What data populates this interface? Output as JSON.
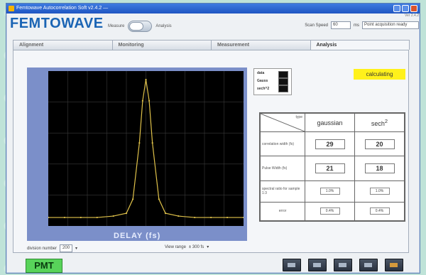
{
  "window": {
    "title": "Femtowave Autocorrelation Soft v2.4.2 —"
  },
  "brand": "FEMTOWAVE",
  "toggle": {
    "left_label": "Measure",
    "right_label": "Analysis"
  },
  "header_right": {
    "label": "Scan Speed",
    "value": "60",
    "unit": "ms",
    "status": "Point acquisition ready"
  },
  "version": "Ver 2.4.2",
  "tabs": [
    {
      "label": "Alignment"
    },
    {
      "label": "Monitoring"
    },
    {
      "label": "Measurement"
    },
    {
      "label": "Analysis"
    }
  ],
  "legend": {
    "items": [
      "data",
      "Gauss",
      "sech^2"
    ]
  },
  "status_badge": "calculating",
  "results": {
    "type_label": "type",
    "col_gaussian": "gaussian",
    "col_sech": "sech",
    "col_sech_sup": "2",
    "row1_label": "correlation width (fs)",
    "row1_gauss": "29",
    "row1_sech": "20",
    "row2_label": "Pulse Width (fs)",
    "row2_gauss": "21",
    "row2_sech": "18",
    "row3_label": "spectral ratio for sample 1:3",
    "row3_gauss": "1.0%",
    "row3_sech": "1.0%",
    "row4_label": "error",
    "row4_gauss": "0.4%",
    "row4_sech": "0.4%"
  },
  "chart_data": {
    "type": "line",
    "xlabel": "DELAY (fs)",
    "series": [
      {
        "x": [
          -300,
          -250,
          -200,
          -150,
          -100,
          -60,
          -40,
          -20,
          -10,
          0,
          10,
          20,
          40,
          60,
          100,
          150,
          200,
          250,
          300
        ],
        "y": [
          0.02,
          0.02,
          0.02,
          0.02,
          0.03,
          0.05,
          0.15,
          0.55,
          0.85,
          1.0,
          0.85,
          0.55,
          0.15,
          0.05,
          0.03,
          0.02,
          0.02,
          0.02,
          0.02
        ]
      }
    ],
    "xlim": [
      -300,
      300
    ],
    "ylim": [
      0,
      1
    ],
    "grid": true
  },
  "bottom": {
    "division_label": "division number",
    "division_value": "200",
    "view_range_label": "View range",
    "view_range_value": "± 300 fs"
  },
  "pmt_label": "PMT",
  "colors": {
    "accent": "#1a64b4",
    "badge": "#fff11b",
    "pmt": "#58d35a",
    "trace": "#e0c24a"
  }
}
